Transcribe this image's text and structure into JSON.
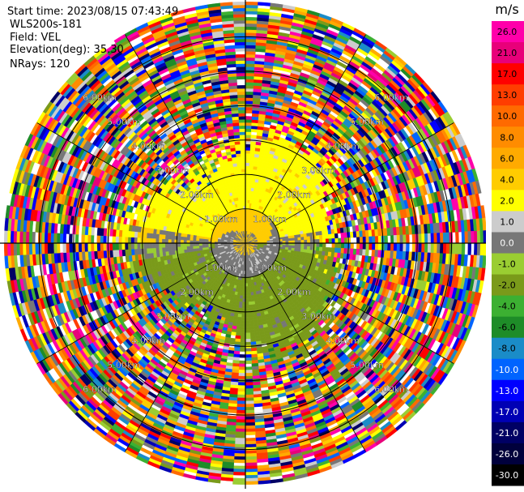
{
  "header": {
    "start_time": "Start time: 2023/08/15 07:43:49",
    "site": "WLS200s-181",
    "field": "Field: VEL",
    "elevation": "Elevation(deg): 35.30",
    "nrays": "NRays: 120"
  },
  "chart_data": {
    "type": "heatmap",
    "projection": "polar-ppi",
    "field": "VEL",
    "units": "m/s",
    "nrays": 120,
    "range_rings_km": [
      1.0,
      2.0,
      3.0,
      4.0,
      5.0,
      6.0
    ],
    "ring_labels": [
      "1.00km",
      "2.00km",
      "3.00km",
      "4.00km",
      "5.00km",
      "6.00km"
    ],
    "spokes_deg": [
      0,
      30,
      60,
      90,
      120,
      150,
      180,
      210,
      240,
      270,
      300,
      330
    ],
    "max_range_km": 7.0,
    "colorbar": {
      "label": "m/s",
      "levels": [
        {
          "label": "26.0",
          "color": "#ff00aa"
        },
        {
          "label": "21.0",
          "color": "#e8007a"
        },
        {
          "label": "17.0",
          "color": "#ff0000"
        },
        {
          "label": "13.0",
          "color": "#ff3d00"
        },
        {
          "label": "10.0",
          "color": "#ff6a00"
        },
        {
          "label": "8.0",
          "color": "#ff8c00"
        },
        {
          "label": "6.0",
          "color": "#ffaa00"
        },
        {
          "label": "4.0",
          "color": "#ffcc00"
        },
        {
          "label": "2.0",
          "color": "#ffff00"
        },
        {
          "label": "1.0",
          "color": "#cccccc"
        },
        {
          "label": "0.0",
          "color": "#777777"
        },
        {
          "label": "-1.0",
          "color": "#9acd32"
        },
        {
          "label": "-2.0",
          "color": "#7a9a1a"
        },
        {
          "label": "-4.0",
          "color": "#3cb032"
        },
        {
          "label": "-6.0",
          "color": "#1e8c28"
        },
        {
          "label": "-8.0",
          "color": "#1a8cc8"
        },
        {
          "label": "-10.0",
          "color": "#0064ff"
        },
        {
          "label": "-13.0",
          "color": "#0000ff"
        },
        {
          "label": "-17.0",
          "color": "#0000b4"
        },
        {
          "label": "-21.0",
          "color": "#000064"
        },
        {
          "label": "-26.0",
          "color": "#00003c"
        },
        {
          "label": "-30.0",
          "color": "#000000"
        }
      ]
    }
  }
}
